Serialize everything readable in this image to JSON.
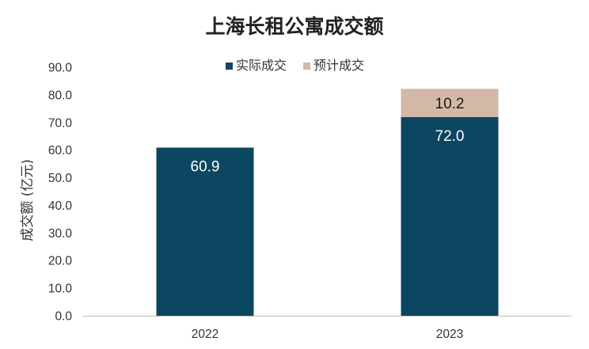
{
  "chart_data": {
    "type": "bar",
    "stacked": true,
    "title": "上海长租公寓成交额",
    "ylabel": "成交额 (亿元)",
    "xlabel": "",
    "categories": [
      "2022",
      "2023"
    ],
    "series": [
      {
        "name": "实际成交",
        "values": [
          60.9,
          72.0
        ],
        "labels": [
          "60.9",
          "72.0"
        ],
        "color": "#0c4660",
        "label_color": "#ffffff"
      },
      {
        "name": "预计成交",
        "values": [
          0,
          10.2
        ],
        "labels": [
          "",
          "10.2"
        ],
        "color": "#d3b8a6",
        "label_color": "#1a1a1a"
      }
    ],
    "ylim": [
      0,
      90
    ],
    "yticks": [
      "0.0",
      "10.0",
      "20.0",
      "30.0",
      "40.0",
      "50.0",
      "60.0",
      "70.0",
      "80.0",
      "90.0"
    ],
    "grid": false,
    "legend_position": "top"
  }
}
